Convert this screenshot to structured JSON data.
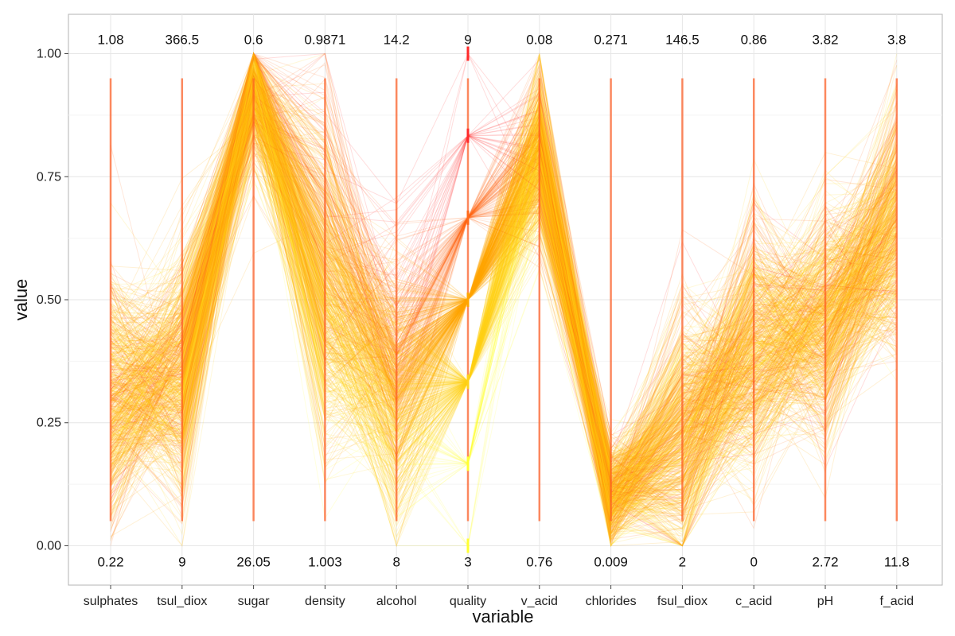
{
  "chart_data": {
    "type": "parallel-coordinates",
    "xlabel": "variable",
    "ylabel": "value",
    "ylim": [
      -0.08,
      1.08
    ],
    "y_ticks": [
      {
        "value": 0,
        "label": "0.00"
      },
      {
        "value": 0.25,
        "label": "0.25"
      },
      {
        "value": 0.5,
        "label": "0.50"
      },
      {
        "value": 0.75,
        "label": "0.75"
      },
      {
        "value": 1,
        "label": "1.00"
      }
    ],
    "grid": true,
    "legend": "none",
    "colors": {
      "low_quality": "#ffff33",
      "mid_quality": "#ffa500",
      "high_quality": "#ff2a2a",
      "axis_line": "#ff5a1f"
    },
    "variables": [
      {
        "name": "sulphates",
        "max_label": "1.08",
        "min_label": "0.22"
      },
      {
        "name": "tsul_diox",
        "max_label": "366.5",
        "min_label": "9"
      },
      {
        "name": "sugar",
        "max_label": "0.6",
        "min_label": "26.05"
      },
      {
        "name": "density",
        "max_label": "0.9871",
        "min_label": "1.003"
      },
      {
        "name": "alcohol",
        "max_label": "14.2",
        "min_label": "8"
      },
      {
        "name": "quality",
        "max_label": "9",
        "min_label": "3"
      },
      {
        "name": "v_acid",
        "max_label": "0.08",
        "min_label": "0.76"
      },
      {
        "name": "chlorides",
        "max_label": "0.271",
        "min_label": "0.009"
      },
      {
        "name": "fsul_diox",
        "max_label": "146.5",
        "min_label": "2"
      },
      {
        "name": "c_acid",
        "max_label": "0.86",
        "min_label": "0"
      },
      {
        "name": "pH",
        "max_label": "3.82",
        "min_label": "2.72"
      },
      {
        "name": "f_acid",
        "max_label": "3.8",
        "min_label": "11.8"
      }
    ],
    "quality_levels": [
      0,
      0.1667,
      0.3333,
      0.5,
      0.6667,
      0.8333,
      1
    ],
    "typical_profile": {
      "sulphates": 0.3,
      "tsul_diox": 0.35,
      "sugar": 0.93,
      "density": 0.6,
      "alcohol": 0.2,
      "v_acid": 0.8,
      "chlorides": 0.1,
      "fsul_diox": 0.22,
      "c_acid": 0.4,
      "pH": 0.45,
      "f_acid": 0.65
    }
  }
}
